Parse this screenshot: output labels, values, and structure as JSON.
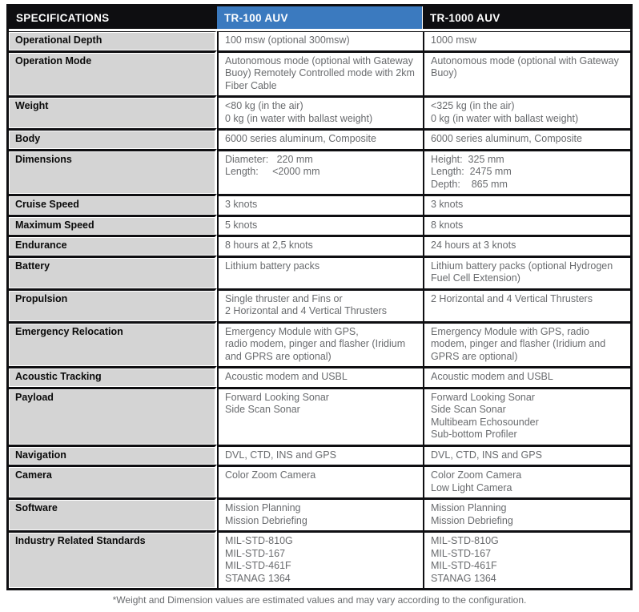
{
  "colors": {
    "header_black": "#0e0e11",
    "accent_blue": "#3b7abf",
    "label_gray": "#d4d4d4",
    "value_text_gray": "#696b6e"
  },
  "header": {
    "specifications": "SPECIFICATIONS",
    "tr100": "TR-100 AUV",
    "tr1000": "TR-1000 AUV"
  },
  "rows": [
    {
      "label": "Operational Depth",
      "tr100": "100 msw (optional 300msw)",
      "tr1000": "1000 msw"
    },
    {
      "label": "Operation Mode",
      "tr100": "Autonomous mode (optional with Gateway\nBuoy) Remotely Controlled mode with 2km\nFiber Cable",
      "tr1000": "Autonomous mode (optional with Gateway\nBuoy)"
    },
    {
      "label": "Weight",
      "tr100": "<80 kg (in the air)\n0 kg (in water with ballast weight)",
      "tr1000": "<325 kg (in the air)\n0 kg (in water with ballast weight)"
    },
    {
      "label": "Body",
      "tr100": "6000 series aluminum, Composite",
      "tr1000": "6000 series aluminum, Composite"
    },
    {
      "label": "Dimensions",
      "tr100": "Diameter:   220 mm\nLength:     <2000 mm",
      "tr1000": "Height:  325 mm\nLength:  2475 mm\nDepth:    865 mm"
    },
    {
      "label": "Cruise Speed",
      "tr100": "3 knots",
      "tr1000": "3 knots"
    },
    {
      "label": "Maximum Speed",
      "tr100": "5 knots",
      "tr1000": "8 knots"
    },
    {
      "label": "Endurance",
      "tr100": "8 hours at 2,5 knots",
      "tr1000": "24 hours at 3 knots"
    },
    {
      "label": "Battery",
      "tr100": "Lithium battery packs",
      "tr1000": "Lithium battery packs (optional Hydrogen\nFuel Cell Extension)"
    },
    {
      "label": "Propulsion",
      "tr100": "Single thruster and Fins or\n2 Horizontal and 4 Vertical Thrusters",
      "tr1000": "2 Horizontal and 4 Vertical Thrusters"
    },
    {
      "label": "Emergency Relocation",
      "tr100": "Emergency Module with GPS,\nradio modem, pinger and flasher (Iridium\nand GPRS are optional)",
      "tr1000": "Emergency Module with GPS, radio\nmodem, pinger and flasher (Iridium and\nGPRS are optional)"
    },
    {
      "label": "Acoustic Tracking",
      "tr100": "Acoustic modem and USBL",
      "tr1000": "Acoustic modem and USBL"
    },
    {
      "label": "Payload",
      "tr100": "Forward Looking Sonar\nSide Scan Sonar",
      "tr1000": "Forward Looking Sonar\nSide Scan Sonar\nMultibeam Echosounder\nSub-bottom Profiler"
    },
    {
      "label": "Navigation",
      "tr100": "DVL, CTD, INS and GPS",
      "tr1000": "DVL, CTD, INS and GPS"
    },
    {
      "label": "Camera",
      "tr100": "Color Zoom Camera",
      "tr1000": "Color Zoom Camera\nLow Light Camera"
    },
    {
      "label": "Software",
      "tr100": "Mission Planning\nMission Debriefing",
      "tr1000": "Mission Planning\nMission Debriefing"
    },
    {
      "label": "Industry Related Standards",
      "tr100": "MIL-STD-810G\nMIL-STD-167\nMIL-STD-461F\nSTANAG 1364",
      "tr1000": "MIL-STD-810G\nMIL-STD-167\nMIL-STD-461F\nSTANAG 1364"
    }
  ],
  "footnote": "*Weight and Dimension values are estimated values and may vary according to the configuration."
}
